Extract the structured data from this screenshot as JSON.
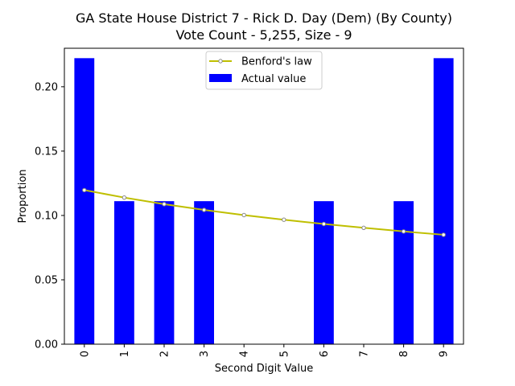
{
  "chart_data": {
    "type": "bar",
    "title": "GA State House District 7 - Rick D. Day (Dem) (By County)",
    "subtitle": "Vote Count - 5,255, Size - 9",
    "xlabel": "Second Digit Value",
    "ylabel": "Proportion",
    "categories": [
      "0",
      "1",
      "2",
      "3",
      "4",
      "5",
      "6",
      "7",
      "8",
      "9"
    ],
    "ylim": [
      0,
      0.2299
    ],
    "yticks": [
      "0.00",
      "0.05",
      "0.10",
      "0.15",
      "0.20"
    ],
    "ytick_values": [
      0,
      0.05,
      0.1,
      0.15,
      0.2
    ],
    "grid": false,
    "legend_position": "top-center",
    "series": [
      {
        "name": "Actual value",
        "kind": "bar",
        "color": "#0000ff",
        "values": [
          0.2222,
          0.1111,
          0.1111,
          0.1111,
          0,
          0,
          0.1111,
          0,
          0.1111,
          0.2222
        ]
      },
      {
        "name": "Benford's law",
        "kind": "line",
        "color": "#bfbf00",
        "marker": "circle",
        "values": [
          0.1197,
          0.1139,
          0.1088,
          0.1043,
          0.1003,
          0.0967,
          0.0934,
          0.0904,
          0.0876,
          0.085
        ]
      }
    ]
  }
}
